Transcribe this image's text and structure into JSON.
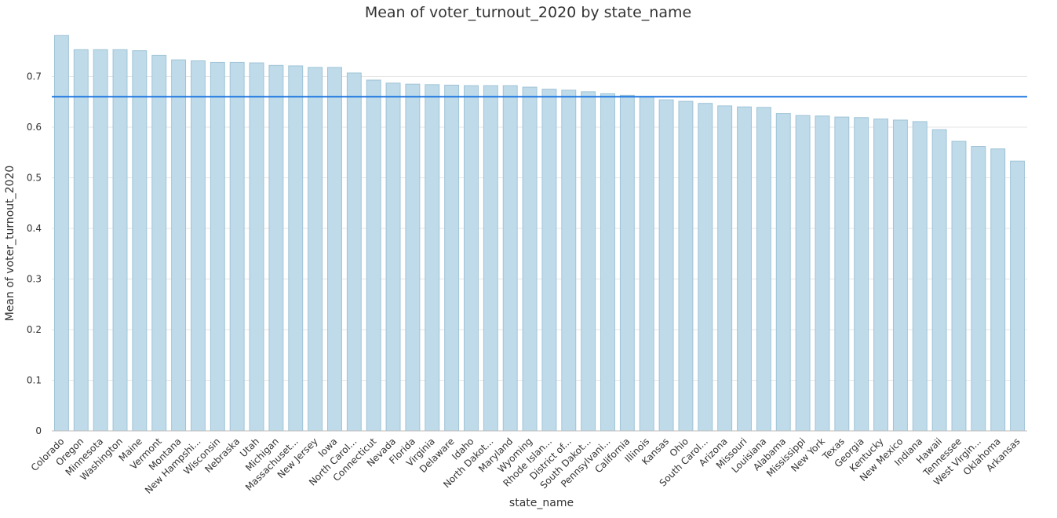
{
  "chart_data": {
    "type": "bar",
    "title": "Mean of voter_turnout_2020 by state_name",
    "xlabel": "state_name",
    "ylabel": "Mean of voter_turnout_2020",
    "ylim": [
      0,
      0.78
    ],
    "yticks": [
      0,
      0.1,
      0.2,
      0.3,
      0.4,
      0.5,
      0.6,
      0.7
    ],
    "grid": true,
    "reference_line": {
      "value": 0.66,
      "color": "#1f77e0"
    },
    "bar_color": "#bfdbea",
    "categories": [
      "Colorado",
      "Oregon",
      "Minnesota",
      "Washington",
      "Maine",
      "Vermont",
      "Montana",
      "New Hampshi...",
      "Wisconsin",
      "Nebraska",
      "Utah",
      "Michigan",
      "Massachuset...",
      "New Jersey",
      "Iowa",
      "North Carol...",
      "Connecticut",
      "Nevada",
      "Florida",
      "Virginia",
      "Delaware",
      "Idaho",
      "North Dakot...",
      "Maryland",
      "Wyoming",
      "Rhode Islan...",
      "District of...",
      "South Dakot...",
      "Pennsylvani...",
      "California",
      "Illinois",
      "Kansas",
      "Ohio",
      "South Carol...",
      "Arizona",
      "Missouri",
      "Louisiana",
      "Alabama",
      "Mississippi",
      "New York",
      "Texas",
      "Georgia",
      "Kentucky",
      "New Mexico",
      "Indiana",
      "Hawaii",
      "Tennessee",
      "West Virgin...",
      "Oklahoma",
      "Arkansas"
    ],
    "values": [
      0.781,
      0.753,
      0.753,
      0.753,
      0.751,
      0.742,
      0.733,
      0.731,
      0.728,
      0.728,
      0.727,
      0.722,
      0.721,
      0.718,
      0.718,
      0.707,
      0.693,
      0.687,
      0.685,
      0.684,
      0.683,
      0.682,
      0.682,
      0.682,
      0.679,
      0.675,
      0.673,
      0.67,
      0.666,
      0.663,
      0.66,
      0.654,
      0.651,
      0.647,
      0.642,
      0.64,
      0.639,
      0.627,
      0.623,
      0.622,
      0.62,
      0.619,
      0.616,
      0.614,
      0.611,
      0.595,
      0.572,
      0.562,
      0.557,
      0.533
    ]
  }
}
